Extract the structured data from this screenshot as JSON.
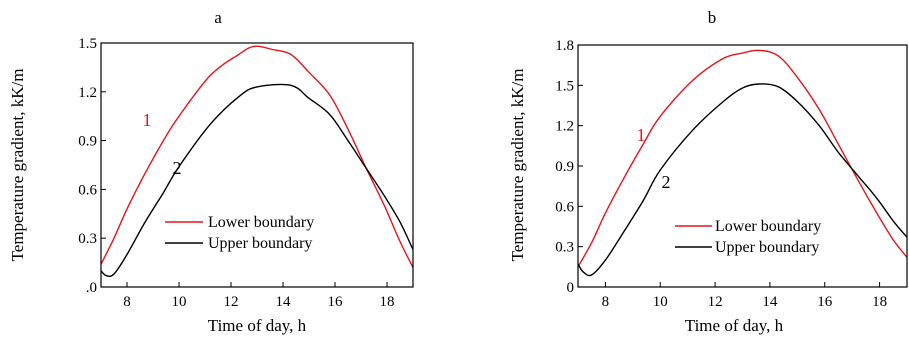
{
  "chart_data": [
    {
      "type": "line",
      "title": "a",
      "xlabel": "Time of day, h",
      "ylabel": "Temperature gradient, kK/m",
      "xlim": [
        7,
        19
      ],
      "ylim": [
        0,
        1.5
      ],
      "xticks": [
        8,
        10,
        12,
        14,
        16,
        18
      ],
      "yticks": [
        0,
        0.3,
        0.6,
        0.9,
        1.2,
        1.5
      ],
      "ytick_labels": [
        ".0",
        "0.3",
        "0.6",
        "0.9",
        "1.2",
        "1.5"
      ],
      "legend": "lower-center",
      "series": [
        {
          "name": "Lower boundary",
          "label": "1",
          "color": "#e8141c",
          "x": [
            7.0,
            7.5,
            8.0,
            8.7,
            9.4,
            10.0,
            11.2,
            12.3,
            12.9,
            13.6,
            14.3,
            15.0,
            15.8,
            16.5,
            17.2,
            17.9,
            18.5,
            19.0
          ],
          "y": [
            0.14,
            0.3,
            0.48,
            0.7,
            0.9,
            1.05,
            1.3,
            1.43,
            1.48,
            1.46,
            1.43,
            1.32,
            1.18,
            0.97,
            0.73,
            0.5,
            0.28,
            0.12
          ]
        },
        {
          "name": "Upper boundary",
          "label": "2",
          "color": "#000000",
          "x": [
            7.0,
            7.2,
            7.5,
            8.0,
            8.7,
            9.4,
            10.0,
            11.2,
            12.3,
            13.0,
            14.3,
            15.0,
            15.8,
            16.5,
            17.2,
            17.9,
            18.5,
            19.0
          ],
          "y": [
            0.1,
            0.07,
            0.08,
            0.2,
            0.4,
            0.58,
            0.74,
            1.0,
            1.17,
            1.23,
            1.24,
            1.16,
            1.06,
            0.9,
            0.73,
            0.56,
            0.4,
            0.23
          ]
        }
      ]
    },
    {
      "type": "line",
      "title": "b",
      "xlabel": "Time of day, h",
      "ylabel": "Temperature gradient, kK/m",
      "xlim": [
        7,
        19
      ],
      "ylim": [
        0,
        1.8
      ],
      "xticks": [
        8,
        10,
        12,
        14,
        16,
        18
      ],
      "yticks": [
        0,
        0.3,
        0.6,
        0.9,
        1.2,
        1.5,
        1.8
      ],
      "ytick_labels": [
        "0",
        "0.3",
        "0.6",
        "0.9",
        "1.2",
        "1.5",
        "1.8"
      ],
      "legend": "lower-center",
      "series": [
        {
          "name": "Lower boundary",
          "label": "1",
          "color": "#e8141c",
          "x": [
            7.0,
            7.5,
            8.0,
            8.7,
            9.4,
            10.0,
            11.2,
            12.3,
            13.0,
            13.6,
            14.3,
            15.0,
            15.8,
            16.5,
            17.2,
            17.9,
            18.5,
            19.0
          ],
          "y": [
            0.15,
            0.33,
            0.55,
            0.82,
            1.07,
            1.27,
            1.54,
            1.7,
            1.74,
            1.76,
            1.72,
            1.56,
            1.32,
            1.06,
            0.8,
            0.55,
            0.35,
            0.22
          ]
        },
        {
          "name": "Upper boundary",
          "label": "2",
          "color": "#000000",
          "x": [
            7.0,
            7.2,
            7.5,
            8.0,
            8.7,
            9.4,
            10.0,
            11.2,
            12.3,
            13.0,
            13.6,
            14.3,
            15.0,
            15.8,
            16.5,
            17.2,
            17.9,
            18.5,
            19.0
          ],
          "y": [
            0.17,
            0.11,
            0.09,
            0.2,
            0.42,
            0.65,
            0.87,
            1.17,
            1.38,
            1.48,
            1.51,
            1.49,
            1.38,
            1.2,
            1.0,
            0.83,
            0.66,
            0.49,
            0.37
          ]
        }
      ]
    }
  ]
}
